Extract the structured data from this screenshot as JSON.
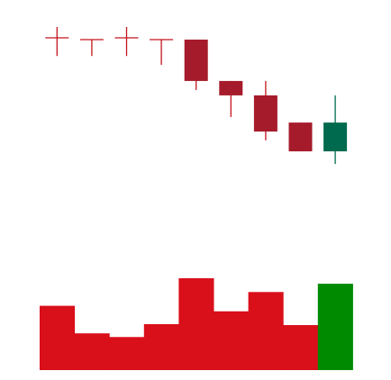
{
  "chart_data": {
    "type": "candlestick",
    "title": "",
    "xlabel": "",
    "ylabel": "",
    "grid": false,
    "legend": "none",
    "price_range": [
      0,
      100
    ],
    "volume_range": [
      0,
      100
    ],
    "colors": {
      "down_wick": "#c4141c",
      "down_body": "#a61b2b",
      "up_body": "#006a4e",
      "volume_down": "#d90f1a",
      "volume_up": "#008a00"
    },
    "candles": [
      {
        "open": 90.1,
        "high": 95.5,
        "low": 81.0,
        "close": 90.1,
        "direction": "down",
        "volume": 70
      },
      {
        "open": 89.2,
        "high": 89.2,
        "low": 81.0,
        "close": 89.2,
        "direction": "down",
        "volume": 40
      },
      {
        "open": 90.1,
        "high": 95.5,
        "low": 81.0,
        "close": 90.1,
        "direction": "down",
        "volume": 36
      },
      {
        "open": 89.2,
        "high": 89.2,
        "low": 76.6,
        "close": 89.2,
        "direction": "down",
        "volume": 50
      },
      {
        "open": 89.2,
        "high": 89.2,
        "low": 64.0,
        "close": 68.5,
        "direction": "down",
        "volume": 100
      },
      {
        "open": 68.5,
        "high": 68.5,
        "low": 50.5,
        "close": 61.3,
        "direction": "down",
        "volume": 64
      },
      {
        "open": 61.3,
        "high": 68.5,
        "low": 38.8,
        "close": 43.2,
        "direction": "down",
        "volume": 85
      },
      {
        "open": 47.7,
        "high": 47.7,
        "low": 33.3,
        "close": 33.3,
        "direction": "down",
        "volume": 49
      },
      {
        "open": 33.3,
        "high": 61.3,
        "low": 27.0,
        "close": 47.7,
        "direction": "up",
        "volume": 94
      }
    ]
  }
}
